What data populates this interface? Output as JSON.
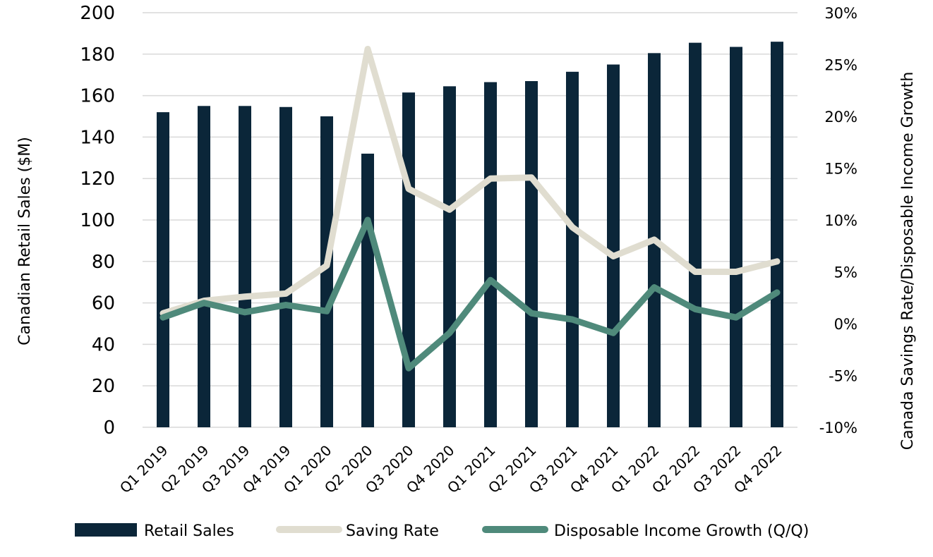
{
  "chart_data": {
    "type": "bar",
    "categories": [
      "Q1 2019",
      "Q2 2019",
      "Q3 2019",
      "Q4 2019",
      "Q1 2020",
      "Q2 2020",
      "Q3 2020",
      "Q4 2020",
      "Q1 2021",
      "Q2 2021",
      "Q3 2021",
      "Q4 2021",
      "Q1 2022",
      "Q2 2022",
      "Q3 2022",
      "Q4 2022"
    ],
    "ylabel": "Canadian Retail Sales ($M)",
    "y2label": "Canada Savings Rate/Disposable Income Growth",
    "ylim": [
      0,
      200
    ],
    "y_ticks": [
      "0",
      "20",
      "40",
      "60",
      "80",
      "100",
      "120",
      "140",
      "160",
      "180",
      "200"
    ],
    "y2lim": [
      -10,
      30
    ],
    "y2_ticks": [
      "-10%",
      "-5%",
      "0%",
      "5%",
      "10%",
      "15%",
      "20%",
      "25%",
      "30%"
    ],
    "grid": true,
    "legend_position": "bottom",
    "series": [
      {
        "name": "Retail Sales",
        "kind": "bar",
        "axis": "left",
        "color": "#0b2639",
        "values": [
          152,
          155,
          155,
          154.5,
          150,
          132,
          161.5,
          164.5,
          166.5,
          167,
          171.5,
          175,
          180.5,
          185.5,
          183.5,
          186
        ]
      },
      {
        "name": "Saving Rate",
        "kind": "line",
        "axis": "right",
        "color": "#e0ddd0",
        "values": [
          1.0,
          2.2,
          2.6,
          2.9,
          5.6,
          26.5,
          13.0,
          11.0,
          14.0,
          14.1,
          9.3,
          6.5,
          8.1,
          5.0,
          5.0,
          6.0
        ]
      },
      {
        "name": "Disposable Income Growth (Q/Q)",
        "kind": "line",
        "axis": "right",
        "color": "#4f8a7b",
        "values": [
          0.6,
          2.0,
          1.1,
          1.8,
          1.2,
          10.0,
          -4.3,
          -0.9,
          4.2,
          1.0,
          0.4,
          -0.9,
          3.5,
          1.4,
          0.6,
          3.0
        ]
      }
    ]
  }
}
